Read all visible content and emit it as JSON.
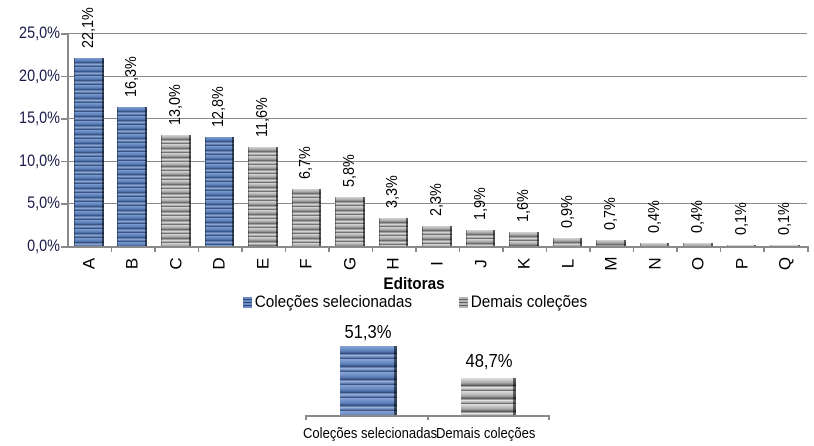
{
  "chart_data": [
    {
      "type": "bar",
      "title": "",
      "xlabel": "Editoras",
      "ylabel": "",
      "ylim": [
        0,
        25
      ],
      "yticks": [
        "0,0%",
        "5,0%",
        "10,0%",
        "15,0%",
        "20,0%",
        "25,0%"
      ],
      "grid": true,
      "legend_position": "bottom",
      "categories": [
        "A",
        "B",
        "C",
        "D",
        "E",
        "F",
        "G",
        "H",
        "I",
        "J",
        "K",
        "L",
        "M",
        "N",
        "O",
        "P",
        "Q"
      ],
      "values": [
        22.1,
        16.3,
        13.0,
        12.8,
        11.6,
        6.7,
        5.8,
        3.3,
        2.3,
        1.9,
        1.6,
        0.9,
        0.7,
        0.4,
        0.4,
        0.1,
        0.1
      ],
      "labels": [
        "22,1%",
        "16,3%",
        "13,0%",
        "12,8%",
        "11,6%",
        "6,7%",
        "5,8%",
        "3,3%",
        "2,3%",
        "1,9%",
        "1,6%",
        "0,9%",
        "0,7%",
        "0,4%",
        "0,4%",
        "0,1%",
        "0,1%"
      ],
      "series_membership": [
        "sel",
        "sel",
        "oth",
        "sel",
        "oth",
        "oth",
        "oth",
        "oth",
        "oth",
        "oth",
        "oth",
        "oth",
        "oth",
        "oth",
        "oth",
        "oth",
        "oth"
      ],
      "legend": [
        {
          "key": "sel",
          "name": "Coleções selecionadas",
          "color": "#5b7db8"
        },
        {
          "key": "oth",
          "name": "Demais coleções",
          "color": "#a6a6a6"
        }
      ]
    },
    {
      "type": "bar",
      "title": "",
      "categories": [
        "Coleções selecionadas",
        "Demais coleções"
      ],
      "values": [
        51.3,
        48.7
      ],
      "labels": [
        "51,3%",
        "48,7%"
      ],
      "colors": [
        "#5b7db8",
        "#a6a6a6"
      ]
    }
  ],
  "main_chart": {
    "xlabel": "Editoras",
    "legend_sel": "Coleções selecionadas",
    "legend_oth": "Demais coleções"
  },
  "summary_chart": {
    "cat_sel": "Coleções selecionadas",
    "cat_oth": "Demais coleções",
    "label_sel": "51,3%",
    "label_oth": "48,7%"
  }
}
